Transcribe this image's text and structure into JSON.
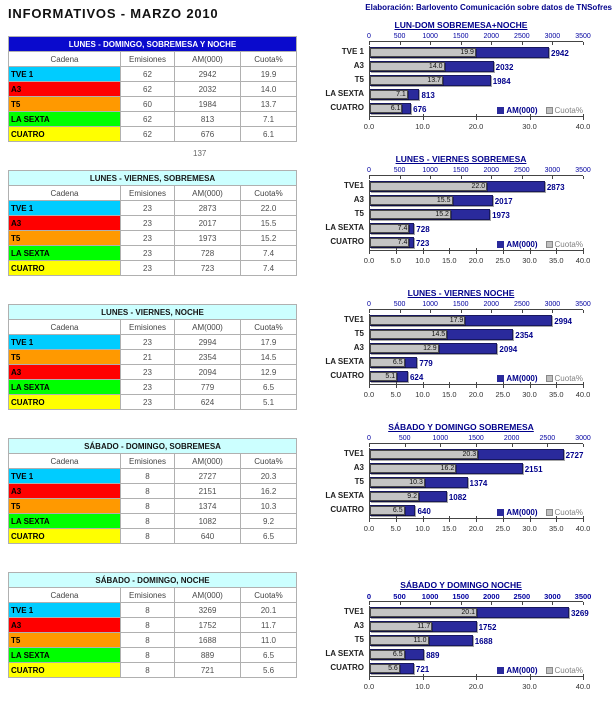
{
  "page": {
    "title": "INFORMATIVOS - MARZO 2010",
    "credit": "Elaboración: Barlovento Comunicación sobre datos de TNSofres",
    "stray_number": "137"
  },
  "table": {
    "columns": [
      "Cadena",
      "Emisiones",
      "AM(000)",
      "Cuota%"
    ]
  },
  "legend": {
    "am_label": "AM(000)",
    "cuota_label": "Cuota%"
  },
  "colors": {
    "channels": {
      "TVE 1": "#00CCFF",
      "A3": "#FF0000",
      "T5": "#FF9900",
      "LA SEXTA": "#00FF00",
      "CUATRO": "#FFFF00"
    },
    "bar_am": "#2A2A9C",
    "bar_cuota": "#C0C0C0",
    "primary_header_bg": "#0A0ACD",
    "secondary_header_bg": "#CCFFFF"
  },
  "sections": [
    {
      "table_title": "LUNES - DOMINGO, SOBREMESA Y NOCHE",
      "rows": [
        {
          "cadena": "TVE 1",
          "emisiones": 62,
          "am": 2942,
          "cuota": 19.9
        },
        {
          "cadena": "A3",
          "emisiones": 62,
          "am": 2032,
          "cuota": 14.0
        },
        {
          "cadena": "T5",
          "emisiones": 60,
          "am": 1984,
          "cuota": 13.7
        },
        {
          "cadena": "LA SEXTA",
          "emisiones": 62,
          "am": 813,
          "cuota": 7.1
        },
        {
          "cadena": "CUATRO",
          "emisiones": 62,
          "am": 676,
          "cuota": 6.1
        }
      ]
    },
    {
      "table_title": "LUNES - VIERNES, SOBREMESA",
      "rows": [
        {
          "cadena": "TVE 1",
          "emisiones": 23,
          "am": 2873,
          "cuota": 22.0
        },
        {
          "cadena": "A3",
          "emisiones": 23,
          "am": 2017,
          "cuota": 15.5
        },
        {
          "cadena": "T5",
          "emisiones": 23,
          "am": 1973,
          "cuota": 15.2
        },
        {
          "cadena": "LA SEXTA",
          "emisiones": 23,
          "am": 728,
          "cuota": 7.4
        },
        {
          "cadena": "CUATRO",
          "emisiones": 23,
          "am": 723,
          "cuota": 7.4
        }
      ]
    },
    {
      "table_title": "LUNES - VIERNES, NOCHE",
      "rows": [
        {
          "cadena": "TVE 1",
          "emisiones": 23,
          "am": 2994,
          "cuota": 17.9
        },
        {
          "cadena": "T5",
          "emisiones": 21,
          "am": 2354,
          "cuota": 14.5
        },
        {
          "cadena": "A3",
          "emisiones": 23,
          "am": 2094,
          "cuota": 12.9
        },
        {
          "cadena": "LA SEXTA",
          "emisiones": 23,
          "am": 779,
          "cuota": 6.5
        },
        {
          "cadena": "CUATRO",
          "emisiones": 23,
          "am": 624,
          "cuota": 5.1
        }
      ]
    },
    {
      "table_title": "SÁBADO - DOMINGO, SOBREMESA",
      "rows": [
        {
          "cadena": "TVE 1",
          "emisiones": 8,
          "am": 2727,
          "cuota": 20.3
        },
        {
          "cadena": "A3",
          "emisiones": 8,
          "am": 2151,
          "cuota": 16.2
        },
        {
          "cadena": "T5",
          "emisiones": 8,
          "am": 1374,
          "cuota": 10.3
        },
        {
          "cadena": "LA SEXTA",
          "emisiones": 8,
          "am": 1082,
          "cuota": 9.2
        },
        {
          "cadena": "CUATRO",
          "emisiones": 8,
          "am": 640,
          "cuota": 6.5
        }
      ]
    },
    {
      "table_title": "SÁBADO - DOMINGO, NOCHE",
      "rows": [
        {
          "cadena": "TVE 1",
          "emisiones": 8,
          "am": 3269,
          "cuota": 20.1
        },
        {
          "cadena": "A3",
          "emisiones": 8,
          "am": 1752,
          "cuota": 11.7
        },
        {
          "cadena": "T5",
          "emisiones": 8,
          "am": 1688,
          "cuota": 11.0
        },
        {
          "cadena": "LA SEXTA",
          "emisiones": 8,
          "am": 889,
          "cuota": 6.5
        },
        {
          "cadena": "CUATRO",
          "emisiones": 8,
          "am": 721,
          "cuota": 5.6
        }
      ]
    }
  ],
  "chart_data": [
    {
      "type": "bar",
      "orientation": "horizontal",
      "title": "LUN-DOM SOBREMESA+NOCHE",
      "categories": [
        "TVE 1",
        "A3",
        "T5",
        "LA SEXTA",
        "CUATRO"
      ],
      "series": [
        {
          "name": "AM(000)",
          "axis": "top",
          "values": [
            2942,
            2032,
            1984,
            813,
            676
          ]
        },
        {
          "name": "Cuota%",
          "axis": "bottom",
          "values": [
            19.9,
            14.0,
            13.7,
            7.1,
            6.1
          ]
        }
      ],
      "top_axis": {
        "min": 0,
        "max": 3500,
        "step": 500
      },
      "bottom_axis": {
        "min": 0,
        "max": 40,
        "step": 10
      },
      "legend_position": "bottom-right",
      "grid": false
    },
    {
      "type": "bar",
      "orientation": "horizontal",
      "title": "LUNES - VIERNES SOBREMESA",
      "categories": [
        "TVE1",
        "A3",
        "T5",
        "LA SEXTA",
        "CUATRO"
      ],
      "series": [
        {
          "name": "AM(000)",
          "axis": "top",
          "values": [
            2873,
            2017,
            1973,
            728,
            723
          ]
        },
        {
          "name": "Cuota%",
          "axis": "bottom",
          "values": [
            22.0,
            15.5,
            15.2,
            7.4,
            7.4
          ]
        }
      ],
      "top_axis": {
        "min": 0,
        "max": 3500,
        "step": 500
      },
      "bottom_axis": {
        "min": 0,
        "max": 40,
        "step": 5
      },
      "legend_position": "bottom-right",
      "grid": false
    },
    {
      "type": "bar",
      "orientation": "horizontal",
      "title": "LUNES - VIERNES  NOCHE",
      "categories": [
        "TVE1",
        "T5",
        "A3",
        "LA SEXTA",
        "CUATRO"
      ],
      "series": [
        {
          "name": "AM(000)",
          "axis": "top",
          "values": [
            2994,
            2354,
            2094,
            779,
            624
          ]
        },
        {
          "name": "Cuota%",
          "axis": "bottom",
          "values": [
            17.9,
            14.5,
            12.9,
            6.5,
            5.1
          ]
        }
      ],
      "top_axis": {
        "min": 0,
        "max": 3500,
        "step": 500
      },
      "bottom_axis": {
        "min": 0,
        "max": 40,
        "step": 5
      },
      "legend_position": "bottom-right",
      "grid": false
    },
    {
      "type": "bar",
      "orientation": "horizontal",
      "title": "SÁBADO Y DOMINGO SOBREMESA",
      "categories": [
        "TVE1",
        "A3",
        "T5",
        "LA SEXTA",
        "CUATRO"
      ],
      "series": [
        {
          "name": "AM(000)",
          "axis": "top",
          "values": [
            2727,
            2151,
            1374,
            1082,
            640
          ]
        },
        {
          "name": "Cuota%",
          "axis": "bottom",
          "values": [
            20.3,
            16.2,
            10.3,
            9.2,
            6.5
          ]
        }
      ],
      "top_axis": {
        "min": 0,
        "max": 3000,
        "step": 500
      },
      "bottom_axis": {
        "min": 0,
        "max": 40,
        "step": 5
      },
      "legend_position": "bottom-right",
      "grid": false
    },
    {
      "type": "bar",
      "orientation": "horizontal",
      "title": "SÁBADO Y DOMINGO  NOCHE",
      "categories": [
        "TVE1",
        "A3",
        "T5",
        "LA SEXTA",
        "CUATRO"
      ],
      "series": [
        {
          "name": "AM(000)",
          "axis": "top",
          "values": [
            3269,
            1752,
            1688,
            889,
            721
          ]
        },
        {
          "name": "Cuota%",
          "axis": "bottom",
          "values": [
            20.1,
            11.7,
            11.0,
            6.5,
            5.6
          ]
        }
      ],
      "top_axis": {
        "min": 0,
        "max": 3500,
        "step": 500
      },
      "bottom_axis": {
        "min": 0,
        "max": 40,
        "step": 10
      },
      "legend_position": "bottom-right",
      "grid": false
    }
  ]
}
